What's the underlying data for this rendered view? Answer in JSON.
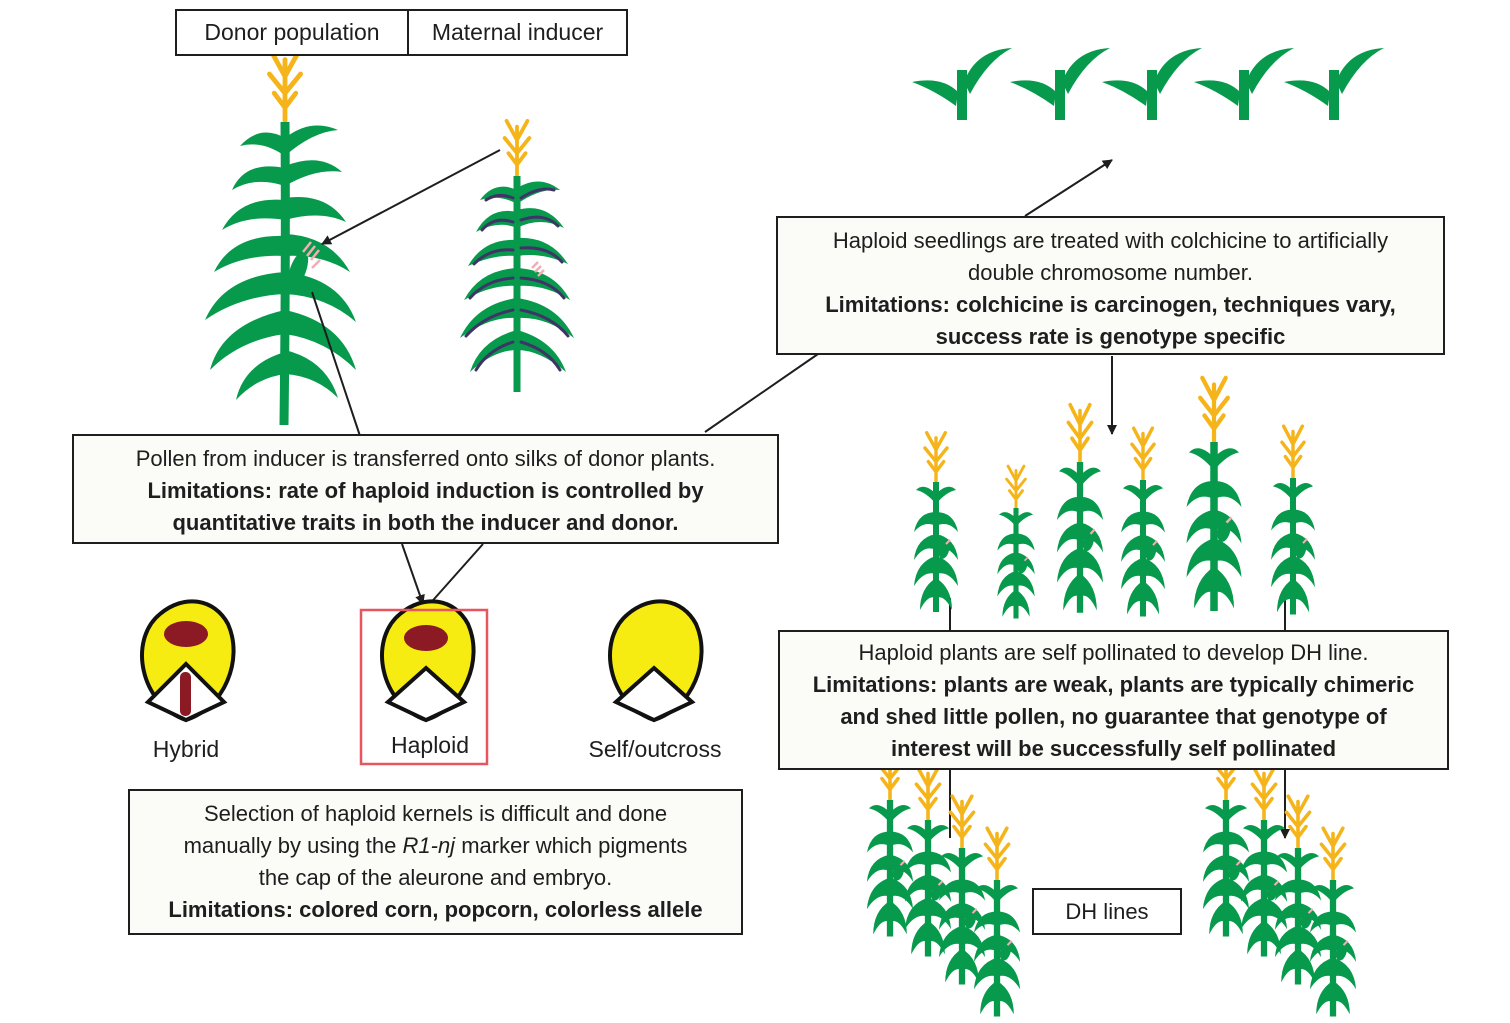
{
  "header": {
    "donor_label": "Donor population",
    "inducer_label": "Maternal inducer"
  },
  "steps": {
    "pollination": {
      "text": "Pollen from inducer is transferred onto silks of donor plants.",
      "limitations": [
        "Limitations: rate of haploid induction is controlled by",
        "quantitative traits in both the inducer and donor."
      ]
    },
    "colchicine": {
      "text": [
        "Haploid seedlings are treated with colchicine to artificially",
        "double chromosome number."
      ],
      "limitations": [
        "Limitations: colchicine is carcinogen, techniques vary,",
        "success rate is genotype specific"
      ]
    },
    "self_pollination": {
      "text": "Haploid plants are self pollinated to develop DH line.",
      "limitations": [
        "Limitations: plants are weak, plants are typically chimeric",
        "and shed little pollen, no guarantee that genotype of",
        "interest will be successfully self pollinated"
      ]
    },
    "selection": {
      "line1": "Selection of haploid kernels is difficult and done",
      "line2_pre": "manually by using the ",
      "line2_marker": "R1-nj",
      "line2_post": " marker which pigments",
      "line3": "the cap of the aleurone and embryo.",
      "limitations": "Limitations: colored corn,  popcorn, colorless allele"
    }
  },
  "kernels": [
    {
      "label": "Hybrid",
      "cap": true,
      "embryo": true,
      "selected": false
    },
    {
      "label": "Haploid",
      "cap": true,
      "embryo": false,
      "selected": true
    },
    {
      "label": "Self/outcross",
      "cap": false,
      "embryo": false,
      "selected": false
    }
  ],
  "dh_lines_label": "DH lines",
  "colors": {
    "leaf": "#079a4c",
    "tassel": "#f5b41a",
    "inducer_leaf_inner": "#3e3566",
    "kernel_fill": "#f7ec12",
    "kernel_pigment": "#8b1a24",
    "silk": "#f1aeb5",
    "selection_frame": "#e8555f"
  }
}
